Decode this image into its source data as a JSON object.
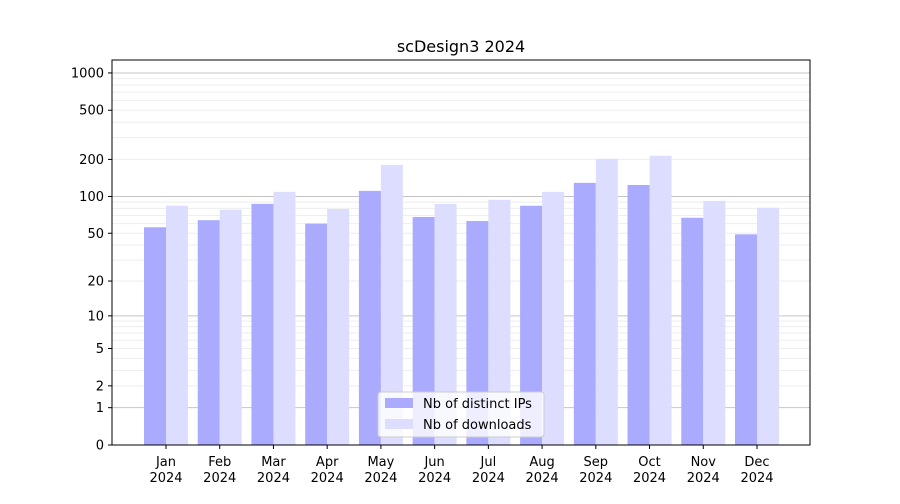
{
  "chart_data": {
    "type": "bar",
    "title": "scDesign3 2024",
    "xlabel": "",
    "ylabel": "",
    "yscale": "symlog (log10(1+y))",
    "ylim": [
      0,
      1260
    ],
    "yticks": [
      0,
      1,
      2,
      5,
      10,
      20,
      50,
      100,
      200,
      500,
      1000
    ],
    "grid": true,
    "legend_position": "bottom-center",
    "categories": [
      "Jan\n2024",
      "Feb\n2024",
      "Mar\n2024",
      "Apr\n2024",
      "May\n2024",
      "Jun\n2024",
      "Jul\n2024",
      "Aug\n2024",
      "Sep\n2024",
      "Oct\n2024",
      "Nov\n2024",
      "Dec\n2024"
    ],
    "series": [
      {
        "name": "Nb of distinct IPs",
        "color": "#aaaaff",
        "values": [
          56,
          64,
          87,
          60,
          111,
          68,
          63,
          84,
          129,
          124,
          67,
          49
        ]
      },
      {
        "name": "Nb of downloads",
        "color": "#ddddff",
        "values": [
          84,
          78,
          109,
          79,
          180,
          87,
          94,
          109,
          202,
          214,
          92,
          81
        ]
      }
    ]
  }
}
